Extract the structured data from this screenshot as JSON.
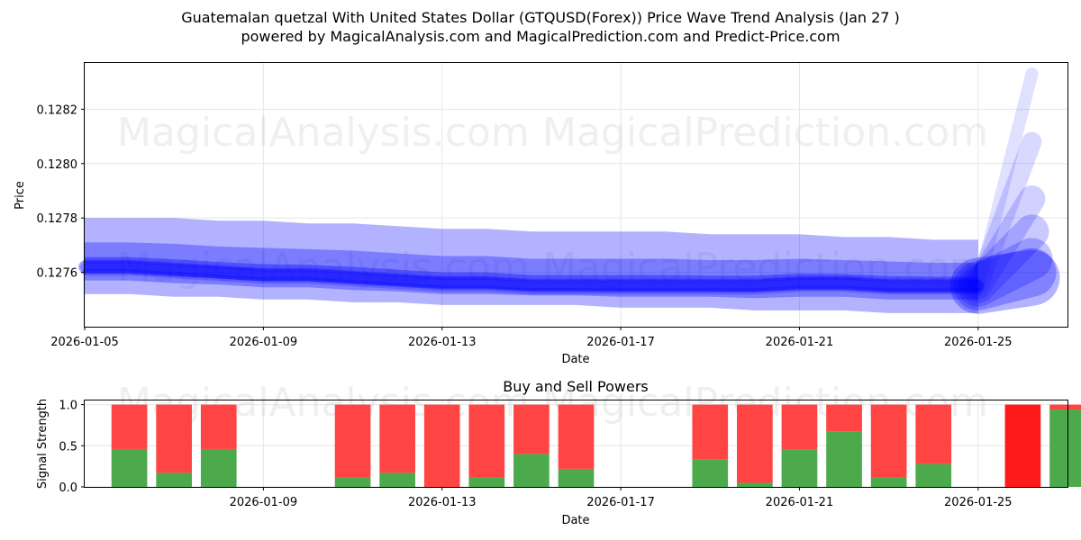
{
  "header": {
    "title_line1": "Guatemalan quetzal With United States Dollar (GTQUSD(Forex)) Price Wave Trend Analysis (Jan 27 )",
    "title_line2": "powered by MagicalAnalysis.com and MagicalPrediction.com and Predict-Price.com"
  },
  "watermarks": [
    "MagicalAnalysis.com",
    "MagicalPrediction.com"
  ],
  "colors": {
    "wave": "#0000ff",
    "buy": "#4caa4c",
    "sell": "#ff4444",
    "sell_strong": "#ff1a1a"
  },
  "chart_data": [
    {
      "type": "area",
      "title": "",
      "xlabel": "Date",
      "ylabel": "Price",
      "xlim": [
        "2026-01-05",
        "2026-01-27"
      ],
      "ylim": [
        0.1274,
        0.12837
      ],
      "xticks": [
        "2026-01-05",
        "2026-01-09",
        "2026-01-13",
        "2026-01-17",
        "2026-01-21",
        "2026-01-25"
      ],
      "yticks": [
        0.1276,
        0.1278,
        0.128,
        0.1282
      ],
      "x": [
        "2026-01-05",
        "2026-01-06",
        "2026-01-07",
        "2026-01-08",
        "2026-01-09",
        "2026-01-10",
        "2026-01-11",
        "2026-01-12",
        "2026-01-13",
        "2026-01-14",
        "2026-01-15",
        "2026-01-16",
        "2026-01-17",
        "2026-01-18",
        "2026-01-19",
        "2026-01-20",
        "2026-01-21",
        "2026-01-22",
        "2026-01-23",
        "2026-01-24",
        "2026-01-25"
      ],
      "series": [
        {
          "name": "upper band",
          "values": [
            0.1278,
            0.1278,
            0.1278,
            0.12779,
            0.12779,
            0.12778,
            0.12778,
            0.12777,
            0.12776,
            0.12776,
            0.12775,
            0.12775,
            0.12775,
            0.12775,
            0.12774,
            0.12774,
            0.12774,
            0.12773,
            0.12773,
            0.12772,
            0.12772
          ]
        },
        {
          "name": "wave",
          "values": [
            0.12762,
            0.12762,
            0.12761,
            0.1276,
            0.12759,
            0.12759,
            0.12758,
            0.12757,
            0.12756,
            0.12756,
            0.12755,
            0.12755,
            0.12755,
            0.12755,
            0.12755,
            0.12755,
            0.12756,
            0.12756,
            0.12755,
            0.12755,
            0.12755
          ]
        },
        {
          "name": "lower band",
          "values": [
            0.12752,
            0.12752,
            0.12751,
            0.12751,
            0.1275,
            0.1275,
            0.12749,
            0.12749,
            0.12748,
            0.12748,
            0.12748,
            0.12748,
            0.12747,
            0.12747,
            0.12747,
            0.12746,
            0.12746,
            0.12746,
            0.12745,
            0.12745,
            0.12745
          ]
        }
      ],
      "projection": {
        "start": {
          "x": "2026-01-25",
          "y": 0.12755
        },
        "endpoints": [
          {
            "x": "2026-01-26",
            "y": 0.12833
          },
          {
            "x": "2026-01-26",
            "y": 0.12808
          },
          {
            "x": "2026-01-26",
            "y": 0.12787
          },
          {
            "x": "2026-01-26",
            "y": 0.12775
          },
          {
            "x": "2026-01-26",
            "y": 0.12765
          },
          {
            "x": "2026-01-26",
            "y": 0.1276
          },
          {
            "x": "2026-01-26",
            "y": 0.12758
          }
        ]
      }
    },
    {
      "type": "bar",
      "title": "Buy and Sell Powers",
      "xlabel": "Date",
      "ylabel": "Signal Strength",
      "xlim": [
        "2026-01-05",
        "2026-01-27"
      ],
      "ylim": [
        0,
        1.05
      ],
      "yticks": [
        0.0,
        0.5,
        1.0
      ],
      "xticks": [
        "2026-01-09",
        "2026-01-13",
        "2026-01-17",
        "2026-01-21",
        "2026-01-25"
      ],
      "categories": [
        "2026-01-06",
        "2026-01-07",
        "2026-01-08",
        "2026-01-11",
        "2026-01-12",
        "2026-01-13",
        "2026-01-14",
        "2026-01-15",
        "2026-01-16",
        "2026-01-19",
        "2026-01-20",
        "2026-01-21",
        "2026-01-22",
        "2026-01-23",
        "2026-01-24",
        "2026-01-26",
        "2026-01-27"
      ],
      "series": [
        {
          "name": "Buy",
          "values": [
            0.46,
            0.17,
            0.46,
            0.12,
            0.17,
            0.0,
            0.12,
            0.4,
            0.22,
            0.33,
            0.05,
            0.45,
            0.67,
            0.12,
            0.28,
            0.0,
            0.94
          ]
        },
        {
          "name": "Sell",
          "values": [
            0.54,
            0.83,
            0.54,
            0.88,
            0.83,
            1.0,
            0.88,
            0.6,
            0.78,
            0.67,
            0.95,
            0.55,
            0.33,
            0.88,
            0.72,
            1.0,
            0.06
          ]
        }
      ]
    }
  ]
}
